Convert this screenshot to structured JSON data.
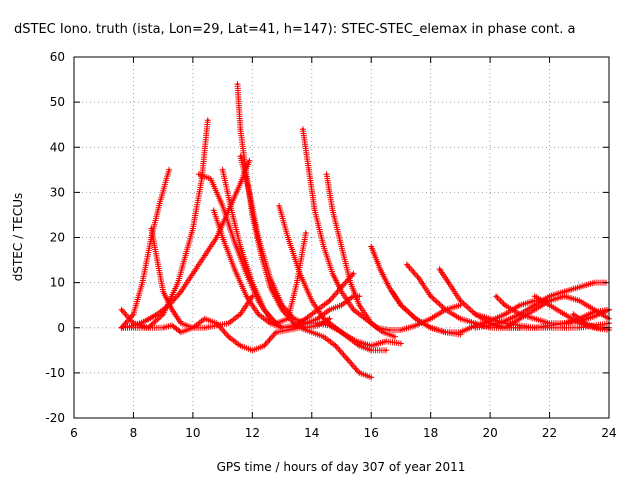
{
  "chart_data": {
    "type": "scatter",
    "title": "dSTEC Iono. truth (ista, Lon=29, Lat=41, h=147): STEC-STEC_elemax in phase cont. a",
    "xlabel": "GPS time / hours of day 307 of year 2011",
    "ylabel": "dSTEC  / TECUs",
    "xlim": [
      6,
      24
    ],
    "ylim": [
      -20,
      60
    ],
    "x_ticks": [
      6,
      8,
      10,
      12,
      14,
      16,
      18,
      20,
      22,
      24
    ],
    "y_ticks": [
      -20,
      -10,
      0,
      10,
      20,
      30,
      40,
      50,
      60
    ],
    "grid": true,
    "color": "#ff0000",
    "marker": "+",
    "series": [
      {
        "x": [
          7.6,
          8.0,
          8.4,
          8.8,
          9.2,
          9.6,
          10.0,
          10.4,
          10.8,
          11.2,
          11.6,
          11.9
        ],
        "y": [
          0,
          0.5,
          1.5,
          3,
          5,
          8,
          12,
          16,
          20,
          26,
          32,
          37
        ]
      },
      {
        "x": [
          7.6,
          8.0,
          8.3,
          8.6,
          8.9,
          9.2
        ],
        "y": [
          0,
          3,
          10,
          20,
          28,
          35
        ]
      },
      {
        "x": [
          7.6,
          8.0,
          8.5,
          9.0,
          9.5,
          10.0,
          10.3,
          10.5
        ],
        "y": [
          4,
          1,
          0,
          3,
          10,
          22,
          33,
          46
        ]
      },
      {
        "x": [
          8.6,
          8.8,
          9.0,
          9.3,
          9.6,
          10.0,
          10.4,
          10.8,
          11.2,
          11.6,
          12.0
        ],
        "y": [
          22,
          15,
          8,
          4,
          1,
          0,
          0,
          0.5,
          1,
          3,
          7
        ]
      },
      {
        "x": [
          7.6,
          8.0,
          8.5,
          9.0,
          9.3,
          9.6,
          10.0,
          10.4,
          10.8,
          11.2,
          11.6,
          12.0,
          12.4,
          12.8,
          13.2,
          13.6,
          14.0,
          14.4,
          14.8,
          15.2,
          15.6,
          16.0
        ],
        "y": [
          0,
          0,
          0,
          0,
          0.5,
          -1,
          0,
          2,
          1,
          -2,
          -4,
          -5,
          -4,
          -1,
          -0.5,
          0,
          -1,
          -2,
          -4,
          -7,
          -10,
          -11
        ]
      },
      {
        "x": [
          10.2,
          10.6,
          11.0,
          11.4,
          11.8,
          12.2,
          12.6,
          13.0,
          13.4,
          13.8,
          14.2,
          14.6,
          15.0,
          15.4
        ],
        "y": [
          34,
          33,
          27,
          19,
          12,
          6,
          2,
          0,
          0.5,
          2,
          4,
          6,
          9,
          12
        ]
      },
      {
        "x": [
          10.7,
          11.0,
          11.4,
          11.8,
          12.2,
          12.6,
          13.0,
          13.4,
          13.8,
          14.2,
          14.6,
          15.0,
          15.4,
          15.6
        ],
        "y": [
          26,
          20,
          13,
          7,
          3,
          1,
          0,
          0,
          1,
          2,
          4,
          5,
          7,
          7
        ]
      },
      {
        "x": [
          11.0,
          11.3,
          11.6,
          12.0,
          12.4,
          12.8,
          13.2,
          13.5,
          13.8
        ],
        "y": [
          35,
          26,
          18,
          10,
          4,
          1,
          2,
          10,
          21
        ]
      },
      {
        "x": [
          11.5,
          11.6,
          11.8,
          12.0,
          12.3,
          12.6,
          13.0,
          13.4,
          13.8,
          14.2,
          14.6
        ],
        "y": [
          54,
          44,
          34,
          25,
          16,
          9,
          4,
          1,
          0,
          0.5,
          2
        ]
      },
      {
        "x": [
          11.6,
          11.9,
          12.2,
          12.6,
          13.0,
          13.4,
          13.8,
          14.2,
          14.6,
          15.0,
          15.5,
          16.0,
          16.5,
          17.0
        ],
        "y": [
          38,
          30,
          20,
          11,
          5,
          2,
          1,
          1,
          0.5,
          -1,
          -3,
          -4,
          -3,
          -3.5
        ]
      },
      {
        "x": [
          12.9,
          13.2,
          13.6,
          14.0,
          14.4,
          14.8,
          15.2,
          15.6,
          16.0,
          16.5
        ],
        "y": [
          27,
          20,
          12,
          6,
          2,
          0,
          -2,
          -4,
          -5,
          -5
        ]
      },
      {
        "x": [
          13.7,
          13.9,
          14.1,
          14.4,
          14.7,
          15.0,
          15.4,
          15.8,
          16.2,
          16.6,
          17.0,
          17.5,
          18.0,
          18.5,
          19.0
        ],
        "y": [
          44,
          35,
          26,
          18,
          12,
          8,
          4,
          2,
          0,
          -0.5,
          -0.5,
          0.5,
          2,
          4,
          5
        ]
      },
      {
        "x": [
          14.5,
          14.7,
          15.0,
          15.3,
          15.6,
          16.0,
          16.4,
          16.8
        ],
        "y": [
          34,
          26,
          18,
          10,
          5,
          1,
          -1,
          -2
        ]
      },
      {
        "x": [
          16.0,
          16.3,
          16.6,
          17.0,
          17.5,
          18.0,
          18.5,
          19.0
        ],
        "y": [
          18,
          13,
          9,
          5,
          2,
          0,
          -1,
          -1.5
        ]
      },
      {
        "x": [
          16.7,
          17.0,
          17.5,
          18.0,
          18.5,
          19.0,
          19.5,
          20.0,
          20.5,
          21.0,
          21.5,
          22.0
        ],
        "y": [
          8,
          5,
          2,
          0,
          -1,
          -1,
          0.5,
          1.5,
          3,
          5,
          6,
          6
        ]
      },
      {
        "x": [
          17.2,
          17.6,
          18.0,
          18.5,
          19.0,
          19.5,
          20.0,
          20.5,
          21.0
        ],
        "y": [
          14,
          11,
          7,
          4,
          2,
          1,
          0,
          0,
          0
        ]
      },
      {
        "x": [
          18.3,
          18.6,
          19.0,
          19.5,
          20.0,
          20.5,
          21.0
        ],
        "y": [
          13,
          10,
          6,
          3,
          1,
          0,
          0
        ]
      },
      {
        "x": [
          20.2,
          20.5,
          21.0,
          21.5,
          22.0,
          22.5,
          23.0,
          23.5,
          24.0
        ],
        "y": [
          7,
          5,
          3,
          2,
          1,
          1,
          1.5,
          2.5,
          4
        ]
      },
      {
        "x": [
          20.5,
          21.0,
          21.5,
          22.0,
          22.5,
          23.0,
          23.5,
          24.0
        ],
        "y": [
          0,
          2,
          4,
          6,
          7,
          6,
          4,
          2
        ]
      },
      {
        "x": [
          19.5,
          20.0,
          20.5,
          21.0,
          21.5,
          22.0,
          22.5,
          23.0,
          23.5,
          23.9
        ],
        "y": [
          0,
          0.5,
          1.5,
          3,
          5,
          7,
          8,
          9,
          10,
          10
        ]
      },
      {
        "x": [
          21.5,
          22.0,
          22.5,
          23.0,
          23.5,
          24.0
        ],
        "y": [
          7,
          5,
          3,
          1,
          0,
          -0.5
        ]
      },
      {
        "x": [
          21.0,
          21.5,
          22.0,
          22.5,
          23.0,
          23.5,
          24.0
        ],
        "y": [
          0,
          0,
          0.5,
          1,
          2,
          3.5,
          4
        ]
      },
      {
        "x": [
          22.8,
          23.2,
          23.6,
          24.0
        ],
        "y": [
          3,
          1,
          0,
          0
        ]
      },
      {
        "x": [
          19.5,
          20.0,
          20.5,
          21.0,
          21.5,
          22.0,
          22.5,
          23.0,
          23.5,
          24.0
        ],
        "y": [
          3,
          2,
          1,
          0.5,
          0,
          0,
          0,
          0,
          0.5,
          1
        ]
      }
    ]
  }
}
